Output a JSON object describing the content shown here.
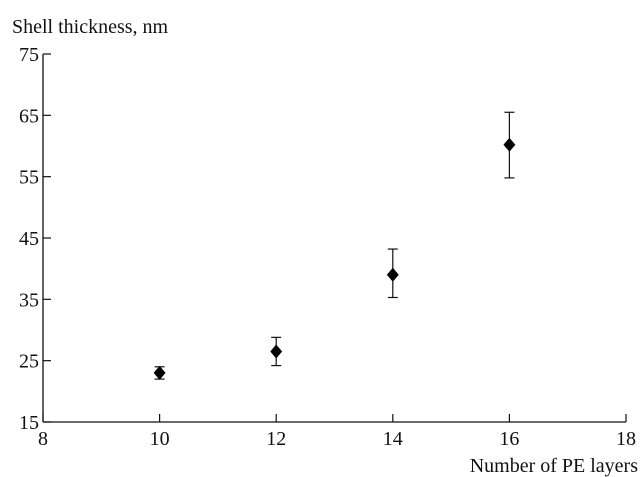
{
  "chart_data": {
    "type": "scatter",
    "ylabel": "Shell thickness, nm",
    "xlabel": "Number of PE layers",
    "xlim": [
      8,
      18
    ],
    "ylim": [
      15,
      75
    ],
    "xticks": [
      8,
      10,
      12,
      14,
      16,
      18
    ],
    "yticks": [
      15,
      25,
      35,
      45,
      55,
      65,
      75
    ],
    "grid": false,
    "marker": "diamond",
    "marker_color": "#000000",
    "points": [
      {
        "x": 10,
        "y": 23.0,
        "err_low": 22.0,
        "err_high": 24.0
      },
      {
        "x": 12,
        "y": 26.5,
        "err_low": 24.2,
        "err_high": 28.8
      },
      {
        "x": 14,
        "y": 39.0,
        "err_low": 35.3,
        "err_high": 43.2
      },
      {
        "x": 16,
        "y": 60.2,
        "err_low": 54.8,
        "err_high": 65.5
      }
    ]
  }
}
